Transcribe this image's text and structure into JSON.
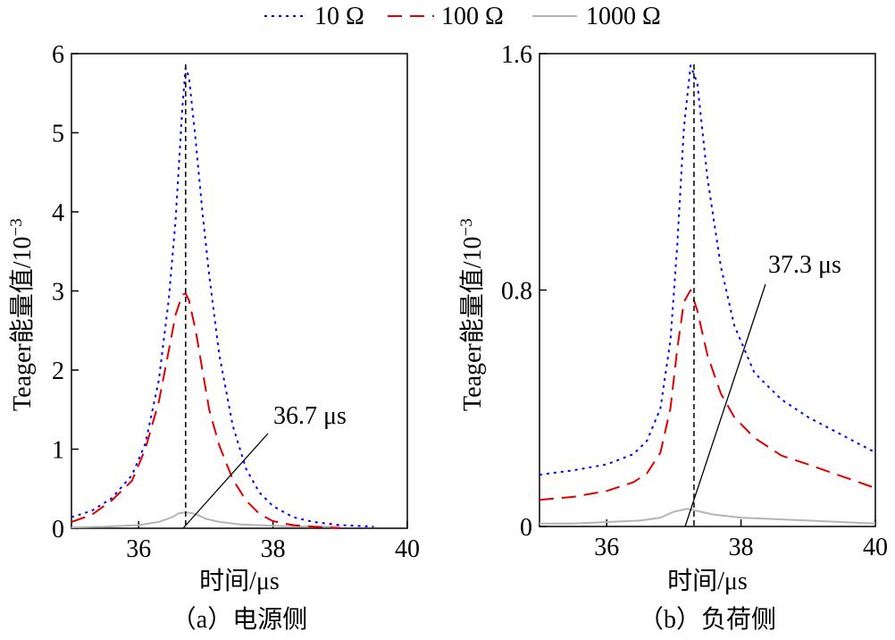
{
  "legend": [
    {
      "label": "10 Ω",
      "color": "#0000ff",
      "dash": "dotted"
    },
    {
      "label": "100 Ω",
      "color": "#e00000",
      "dash": "dashed"
    },
    {
      "label": "1000 Ω",
      "color": "#b4b4b4",
      "dash": "solid"
    }
  ],
  "chart_data": [
    {
      "type": "line",
      "caption": "（a）电源侧",
      "xlabel": "时间/μs",
      "ylabel": "Teager能量值/10",
      "ylabel_exp": "−3",
      "xlim": [
        35.0,
        40.0
      ],
      "ylim": [
        0,
        6
      ],
      "xticks": [
        36,
        38,
        40
      ],
      "yticks": [
        0,
        1,
        2,
        3,
        4,
        5,
        6
      ],
      "marker_x": 36.7,
      "annotation": "36.7 μs",
      "series": [
        {
          "name": "10 Ω",
          "x": [
            35.0,
            35.3,
            35.6,
            35.9,
            36.1,
            36.3,
            36.45,
            36.55,
            36.65,
            36.7,
            36.75,
            36.85,
            36.95,
            37.05,
            37.2,
            37.4,
            37.6,
            37.8,
            38.0,
            38.3,
            38.6,
            39.0,
            39.5
          ],
          "values": [
            0.14,
            0.22,
            0.38,
            0.67,
            1.07,
            1.87,
            2.9,
            3.9,
            5.3,
            5.82,
            5.7,
            4.9,
            4.0,
            3.2,
            2.2,
            1.3,
            0.75,
            0.45,
            0.28,
            0.14,
            0.08,
            0.04,
            0.02
          ]
        },
        {
          "name": "100 Ω",
          "x": [
            35.0,
            35.3,
            35.6,
            35.9,
            36.1,
            36.3,
            36.45,
            36.55,
            36.65,
            36.7,
            36.75,
            36.85,
            36.95,
            37.05,
            37.2,
            37.4,
            37.6,
            37.8,
            38.0,
            38.3,
            38.6,
            39.0
          ],
          "values": [
            0.08,
            0.17,
            0.35,
            0.6,
            1.0,
            1.6,
            2.25,
            2.7,
            2.95,
            2.97,
            2.88,
            2.5,
            2.0,
            1.5,
            1.05,
            0.62,
            0.35,
            0.18,
            0.09,
            0.04,
            0.02,
            0.0
          ]
        },
        {
          "name": "1000 Ω",
          "x": [
            35.0,
            35.5,
            36.0,
            36.3,
            36.5,
            36.6,
            36.7,
            36.8,
            36.9,
            37.0,
            37.2,
            37.5,
            38.0,
            38.5,
            39.0
          ],
          "values": [
            0.01,
            0.02,
            0.04,
            0.08,
            0.14,
            0.19,
            0.2,
            0.19,
            0.16,
            0.12,
            0.08,
            0.05,
            0.03,
            0.02,
            0.02
          ]
        }
      ]
    },
    {
      "type": "line",
      "caption": "（b）负荷侧",
      "xlabel": "时间/μs",
      "ylabel": "Teager能量值/10",
      "ylabel_exp": "−3",
      "xlim": [
        35.0,
        40.0
      ],
      "ylim": [
        0,
        1.6
      ],
      "xticks": [
        36,
        38,
        40
      ],
      "yticks": [
        0,
        0.8,
        1.6
      ],
      "marker_x": 37.3,
      "annotation": "37.3 μs",
      "series": [
        {
          "name": "10 Ω",
          "x": [
            35.0,
            35.5,
            36.0,
            36.4,
            36.6,
            36.8,
            36.95,
            37.05,
            37.15,
            37.25,
            37.35,
            37.5,
            37.7,
            37.9,
            38.2,
            38.6,
            39.0,
            39.5,
            40.0
          ],
          "values": [
            0.175,
            0.19,
            0.21,
            0.245,
            0.29,
            0.4,
            0.63,
            0.95,
            1.35,
            1.56,
            1.5,
            1.18,
            0.88,
            0.68,
            0.52,
            0.43,
            0.37,
            0.31,
            0.25
          ]
        },
        {
          "name": "100 Ω",
          "x": [
            35.0,
            35.5,
            36.0,
            36.4,
            36.6,
            36.8,
            36.95,
            37.05,
            37.15,
            37.25,
            37.35,
            37.5,
            37.7,
            37.9,
            38.2,
            38.6,
            39.0,
            39.5,
            40.0
          ],
          "values": [
            0.09,
            0.1,
            0.12,
            0.15,
            0.18,
            0.25,
            0.4,
            0.6,
            0.76,
            0.8,
            0.73,
            0.58,
            0.45,
            0.37,
            0.3,
            0.24,
            0.21,
            0.17,
            0.13
          ]
        },
        {
          "name": "1000 Ω",
          "x": [
            35.0,
            35.5,
            36.0,
            36.5,
            36.8,
            37.0,
            37.2,
            37.4,
            37.6,
            38.0,
            38.5,
            39.0,
            40.0
          ],
          "values": [
            0.01,
            0.01,
            0.015,
            0.02,
            0.03,
            0.05,
            0.06,
            0.05,
            0.04,
            0.03,
            0.025,
            0.02,
            0.01
          ]
        }
      ]
    }
  ]
}
